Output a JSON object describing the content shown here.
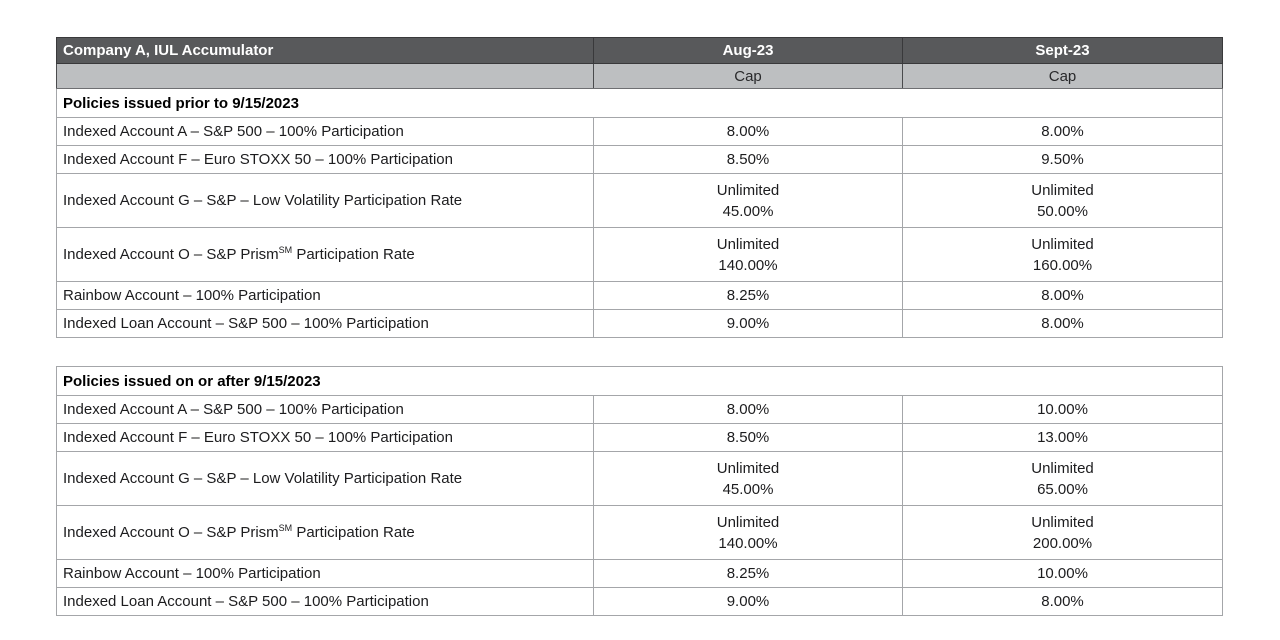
{
  "table": {
    "title": "Company A, IUL Accumulator",
    "columns": [
      "Aug-23",
      "Sept-23"
    ],
    "subheaders": [
      "Cap",
      "Cap"
    ],
    "colors": {
      "header_bg": "#58595b",
      "header_text": "#ffffff",
      "subheader_bg": "#bdbfc1",
      "border": "#a4a6a9",
      "text": "#1c1c1e"
    },
    "sections": [
      {
        "heading": "Policies issued prior to 9/15/2023",
        "rows": [
          {
            "label": "Indexed Account A – S&P 500 – 100% Participation",
            "aug": [
              "8.00%"
            ],
            "sept": [
              "8.00%"
            ]
          },
          {
            "label": "Indexed Account F – Euro STOXX 50 – 100% Participation",
            "aug": [
              "8.50%"
            ],
            "sept": [
              "9.50%"
            ]
          },
          {
            "label": "Indexed Account G – S&P – Low Volatility Participation Rate",
            "aug": [
              "Unlimited",
              "45.00%"
            ],
            "sept": [
              "Unlimited",
              "50.00%"
            ]
          },
          {
            "label": "Indexed Account O – S&P Prism",
            "label_sup": "SM",
            "label_after": " Participation Rate",
            "aug": [
              "Unlimited",
              "140.00%"
            ],
            "sept": [
              "Unlimited",
              "160.00%"
            ]
          },
          {
            "label": "Rainbow Account – 100% Participation",
            "aug": [
              "8.25%"
            ],
            "sept": [
              "8.00%"
            ]
          },
          {
            "label": "Indexed Loan Account – S&P 500 – 100% Participation",
            "aug": [
              "9.00%"
            ],
            "sept": [
              "8.00%"
            ]
          }
        ]
      },
      {
        "heading": "Policies issued on or after 9/15/2023",
        "rows": [
          {
            "label": "Indexed Account A – S&P 500 – 100% Participation",
            "aug": [
              "8.00%"
            ],
            "sept": [
              "10.00%"
            ]
          },
          {
            "label": "Indexed Account F – Euro STOXX 50 – 100% Participation",
            "aug": [
              "8.50%"
            ],
            "sept": [
              "13.00%"
            ]
          },
          {
            "label": "Indexed Account G – S&P – Low Volatility Participation Rate",
            "aug": [
              "Unlimited",
              "45.00%"
            ],
            "sept": [
              "Unlimited",
              "65.00%"
            ]
          },
          {
            "label": "Indexed Account O – S&P Prism",
            "label_sup": "SM",
            "label_after": " Participation Rate",
            "aug": [
              "Unlimited",
              "140.00%"
            ],
            "sept": [
              "Unlimited",
              "200.00%"
            ]
          },
          {
            "label": "Rainbow Account – 100% Participation",
            "aug": [
              "8.25%"
            ],
            "sept": [
              "10.00%"
            ]
          },
          {
            "label": "Indexed Loan Account – S&P 500 – 100% Participation",
            "aug": [
              "9.00%"
            ],
            "sept": [
              "8.00%"
            ]
          }
        ]
      }
    ]
  }
}
